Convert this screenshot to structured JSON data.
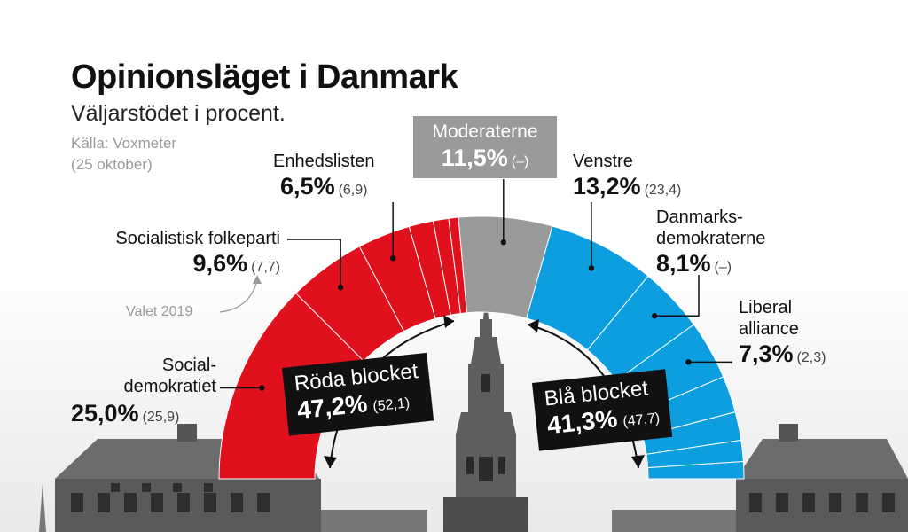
{
  "header": {
    "title": "Opinionsläget i Danmark",
    "subtitle": "Väljarstödet i procent.",
    "source_line1": "Källa: Voxmeter",
    "source_line2": "(25 oktober)"
  },
  "annotation": {
    "valet": "Valet 2019"
  },
  "colors": {
    "red_bloc": "#e0101c",
    "blue_bloc": "#0d9ee0",
    "center": "#9a9a9a",
    "box": "#111111"
  },
  "chart_data": {
    "type": "pie",
    "shape": "semicircle",
    "unit": "%",
    "slices": [
      {
        "name": "Social-demokratiet",
        "name_line1": "Social-",
        "name_line2": "demokratiet",
        "value": 25.0,
        "value_label": "25,0%",
        "previous": "(25,9)",
        "bloc": "red"
      },
      {
        "name": "Socialistisk folkeparti",
        "value": 9.6,
        "value_label": "9,6%",
        "previous": "(7,7)",
        "bloc": "red"
      },
      {
        "name": "Enhedslisten",
        "value": 6.5,
        "value_label": "6,5%",
        "previous": "(6,9)",
        "bloc": "red"
      },
      {
        "name": "",
        "value": 3.0,
        "bloc": "red"
      },
      {
        "name": "",
        "value": 1.9,
        "bloc": "red"
      },
      {
        "name": "",
        "value": 1.2,
        "bloc": "red"
      },
      {
        "name": "Moderaterne",
        "value": 11.5,
        "value_label": "11,5%",
        "previous": "(–)",
        "bloc": "center"
      },
      {
        "name": "Venstre",
        "value": 13.2,
        "value_label": "13,2%",
        "previous": "(23,4)",
        "bloc": "blue"
      },
      {
        "name": "Danmarks-demokraterne",
        "name_line1": "Danmarks-",
        "name_line2": "demokraterne",
        "value": 8.1,
        "value_label": "8,1%",
        "previous": "(–)",
        "bloc": "blue"
      },
      {
        "name": "Liberal alliance",
        "name_line1": "Liberal",
        "name_line2": "alliance",
        "value": 7.3,
        "value_label": "7,3%",
        "previous": "(2,3)",
        "bloc": "blue"
      },
      {
        "name": "",
        "value": 4.5,
        "bloc": "blue"
      },
      {
        "name": "",
        "value": 3.5,
        "bloc": "blue"
      },
      {
        "name": "",
        "value": 2.6,
        "bloc": "blue"
      },
      {
        "name": "",
        "value": 2.1,
        "bloc": "blue"
      }
    ],
    "blocs": {
      "red": {
        "name": "Röda blocket",
        "value": 47.2,
        "value_label": "47,2%",
        "previous": "(52,1)"
      },
      "blue": {
        "name": "Blå blocket",
        "value": 41.3,
        "value_label": "41,3%",
        "previous": "(47,7)"
      }
    }
  }
}
